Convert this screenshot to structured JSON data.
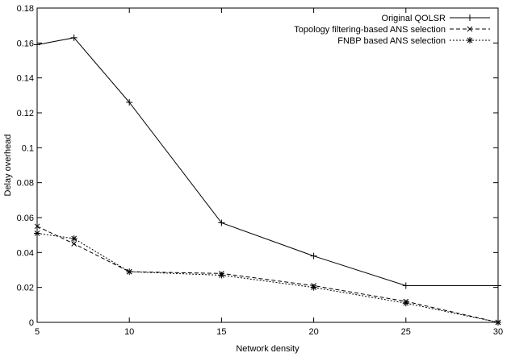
{
  "chart_data": {
    "type": "line",
    "title": "",
    "xlabel": "Network density",
    "ylabel": "Delay overhead",
    "xlim": [
      5,
      30
    ],
    "ylim": [
      0,
      0.18
    ],
    "x_ticks": [
      "5",
      "10",
      "15",
      "20",
      "25",
      "30"
    ],
    "y_ticks": [
      "0",
      "0.02",
      "0.04",
      "0.06",
      "0.08",
      "0.1",
      "0.12",
      "0.14",
      "0.16",
      "0.18"
    ],
    "grid": false,
    "legend_position": "top-right",
    "series": [
      {
        "name": "Original QOLSR",
        "marker": "plus",
        "dash": "solid",
        "x": [
          5,
          7,
          10,
          15,
          20,
          25,
          30
        ],
        "y": [
          0.159,
          0.163,
          0.126,
          0.057,
          0.038,
          0.021,
          0.021
        ]
      },
      {
        "name": "Topology filtering-based ANS selection",
        "marker": "cross",
        "dash": "dashed",
        "x": [
          5,
          7,
          10,
          15,
          20,
          25,
          30
        ],
        "y": [
          0.055,
          0.045,
          0.029,
          0.028,
          0.021,
          0.012,
          0.0
        ]
      },
      {
        "name": "FNBP based ANS selection",
        "marker": "star",
        "dash": "dotted",
        "x": [
          5,
          7,
          10,
          15,
          20,
          25,
          30
        ],
        "y": [
          0.051,
          0.048,
          0.029,
          0.027,
          0.02,
          0.011,
          0.0
        ]
      }
    ]
  }
}
